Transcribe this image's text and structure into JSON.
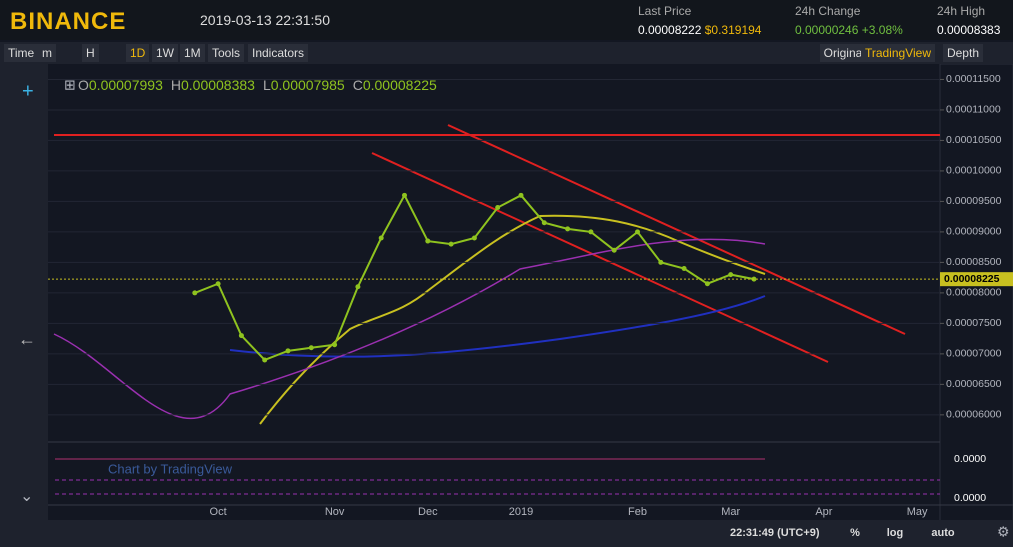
{
  "header": {
    "brand": "BINANCE",
    "datetime": "2019-03-13 22:31:50",
    "stats": [
      {
        "label": "Last Price",
        "value": "0.00008222",
        "extra": "$0.319194"
      },
      {
        "label": "24h Change",
        "value": "0.00000246",
        "extra": "+3.08%"
      },
      {
        "label": "24h High",
        "value": "0.00008383"
      }
    ]
  },
  "toolbar": {
    "left": [
      "Time",
      "m",
      "H",
      "1D",
      "1W",
      "1M",
      "Tools",
      "Indicators"
    ],
    "right": [
      "Original",
      "TradingView",
      "Depth"
    ]
  },
  "ohlc": [
    {
      "key": "O",
      "value": "0.00007993"
    },
    {
      "key": "H",
      "value": "0.00008383"
    },
    {
      "key": "L",
      "value": "0.00007985"
    },
    {
      "key": "C",
      "value": "0.00008225"
    }
  ],
  "chart_data": {
    "type": "line",
    "categories": [
      null,
      null,
      null,
      null,
      null,
      null,
      null,
      "Oct",
      null,
      null,
      null,
      null,
      "Nov",
      null,
      null,
      null,
      "Dec",
      null,
      null,
      null,
      "2019",
      null,
      null,
      null,
      null,
      "Feb",
      null,
      null,
      null,
      "Mar",
      null,
      null,
      null,
      "Apr",
      null,
      null,
      null,
      "May",
      null
    ],
    "values": [
      null,
      null,
      null,
      null,
      null,
      null,
      8e-05,
      8.15e-05,
      7.3e-05,
      6.9e-05,
      7.05e-05,
      7.1e-05,
      7.15e-05,
      8.1e-05,
      8.9e-05,
      9.6e-05,
      8.85e-05,
      8.8e-05,
      8.9e-05,
      9.4e-05,
      9.6e-05,
      9.15e-05,
      9.05e-05,
      9e-05,
      8.7e-05,
      9e-05,
      8.5e-05,
      8.4e-05,
      8.15e-05,
      8.3e-05,
      8.225e-05,
      null,
      null,
      null,
      null,
      null,
      null,
      null,
      null
    ],
    "value_labels": [
      null,
      null,
      null,
      null,
      null,
      null,
      null,
      null,
      null,
      null,
      null,
      null,
      null,
      null,
      null,
      null,
      null,
      null,
      null,
      null,
      null,
      null,
      null,
      null,
      null,
      null,
      null,
      null,
      null,
      null,
      "0.00008225",
      null,
      null,
      null,
      null,
      null,
      null,
      null,
      null
    ],
    "color": "#8fc31f",
    "ylim": [
      5.85e-05,
      0.00011655
    ],
    "yticks": [
      {
        "value": 6e-05,
        "label": "0.00006000"
      },
      {
        "value": 6.5e-05,
        "label": "0.00006500"
      },
      {
        "value": 7e-05,
        "label": "0.00007000"
      },
      {
        "value": 7.5e-05,
        "label": "0.00007500"
      },
      {
        "value": 8e-05,
        "label": "0.00008000"
      },
      {
        "value": 8.5e-05,
        "label": "0.00008500"
      },
      {
        "value": 9e-05,
        "label": "0.00009000"
      },
      {
        "value": 9.5e-05,
        "label": "0.00009500"
      },
      {
        "value": 0.0001,
        "label": "0.00010000"
      },
      {
        "value": 0.000105,
        "label": "0.00010500"
      },
      {
        "value": 0.00011,
        "label": "0.00011000"
      },
      {
        "value": 0.000115,
        "label": "0.00011500"
      }
    ],
    "grid": true
  },
  "indicator": {
    "ticks": [
      "0.0000",
      "0.0000"
    ],
    "watermark": "Chart by TradingView"
  },
  "footer": {
    "time": "22:31:49 (UTC+9)",
    "buttons": [
      "%",
      "log",
      "auto"
    ]
  }
}
